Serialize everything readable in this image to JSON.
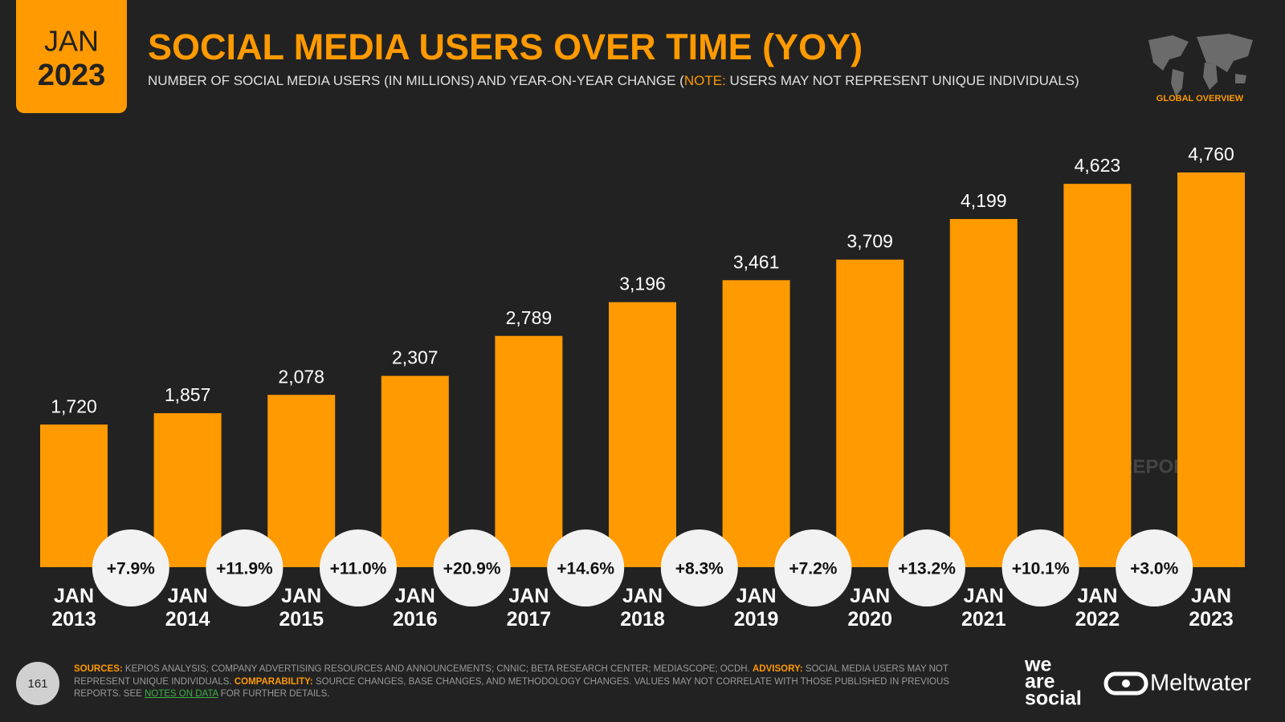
{
  "header": {
    "badge_month": "JAN",
    "badge_year": "2023",
    "section": "GLOBAL OVERVIEW"
  },
  "chart_data": {
    "type": "bar",
    "title": "SOCIAL MEDIA USERS OVER TIME (YOY)",
    "subtitle": [
      {
        "text": "NUMBER OF SOCIAL MEDIA USERS (IN MILLIONS) AND YEAR-ON-YEAR CHANGE (",
        "color": "#e0e0e0"
      },
      {
        "text": "NOTE:",
        "color": "#ff9a00"
      },
      {
        "text": " USERS MAY NOT REPRESENT UNIQUE INDIVIDUALS)",
        "color": "#e0e0e0"
      }
    ],
    "categories": [
      "JAN 2013",
      "JAN 2014",
      "JAN 2015",
      "JAN 2016",
      "JAN 2017",
      "JAN 2018",
      "JAN 2019",
      "JAN 2020",
      "JAN 2021",
      "JAN 2022",
      "JAN 2023"
    ],
    "values": [
      1720,
      1857,
      2078,
      2307,
      2789,
      3196,
      3461,
      3709,
      4199,
      4623,
      4760
    ],
    "value_labels": [
      "1,720",
      "1,857",
      "2,078",
      "2,307",
      "2,789",
      "3,196",
      "3,461",
      "3,709",
      "4,199",
      "4,623",
      "4,760"
    ],
    "color": "#ff9a00",
    "yoy_change": {
      "values": [
        7.9,
        11.9,
        11.0,
        20.9,
        14.6,
        8.3,
        7.2,
        13.2,
        10.1,
        3.0
      ],
      "value_labels": [
        "+7.9%",
        "+11.9%",
        "+11.0%",
        "+20.9%",
        "+14.6%",
        "+8.3%",
        "+7.2%",
        "+13.2%",
        "+10.1%",
        "+3.0%"
      ],
      "color": "#f2f2f2"
    },
    "watermark": "DATAREPORTAL"
  },
  "footer": {
    "page_number": "161",
    "sources": [
      {
        "text": "SOURCES:",
        "color": "#ff9a00"
      },
      {
        "text": " KEPIOS ANALYSIS; COMPANY ADVERTISING RESOURCES AND ANNOUNCEMENTS; CNNIC; BETA RESEARCH CENTER; MEDIASCOPE; OCDH. ",
        "color": "#9a9a9a"
      },
      {
        "text": "ADVISORY:",
        "color": "#ff9a00"
      },
      {
        "text": " SOCIAL MEDIA USERS MAY NOT REPRESENT UNIQUE INDIVIDUALS. ",
        "color": "#9a9a9a"
      },
      {
        "text": "COMPARABILITY:",
        "color": "#ff9a00"
      },
      {
        "text": " SOURCE CHANGES, BASE CHANGES, AND METHODOLOGY CHANGES. VALUES MAY NOT CORRELATE WITH THOSE PUBLISHED IN PREVIOUS REPORTS. SEE ",
        "color": "#9a9a9a"
      },
      {
        "text": "NOTES ON DATA",
        "color": "#3fae49"
      },
      {
        "text": " FOR FURTHER DETAILS.",
        "color": "#9a9a9a"
      }
    ],
    "brand_lines": [
      "we",
      "are",
      "social"
    ],
    "partner": "Meltwater"
  }
}
